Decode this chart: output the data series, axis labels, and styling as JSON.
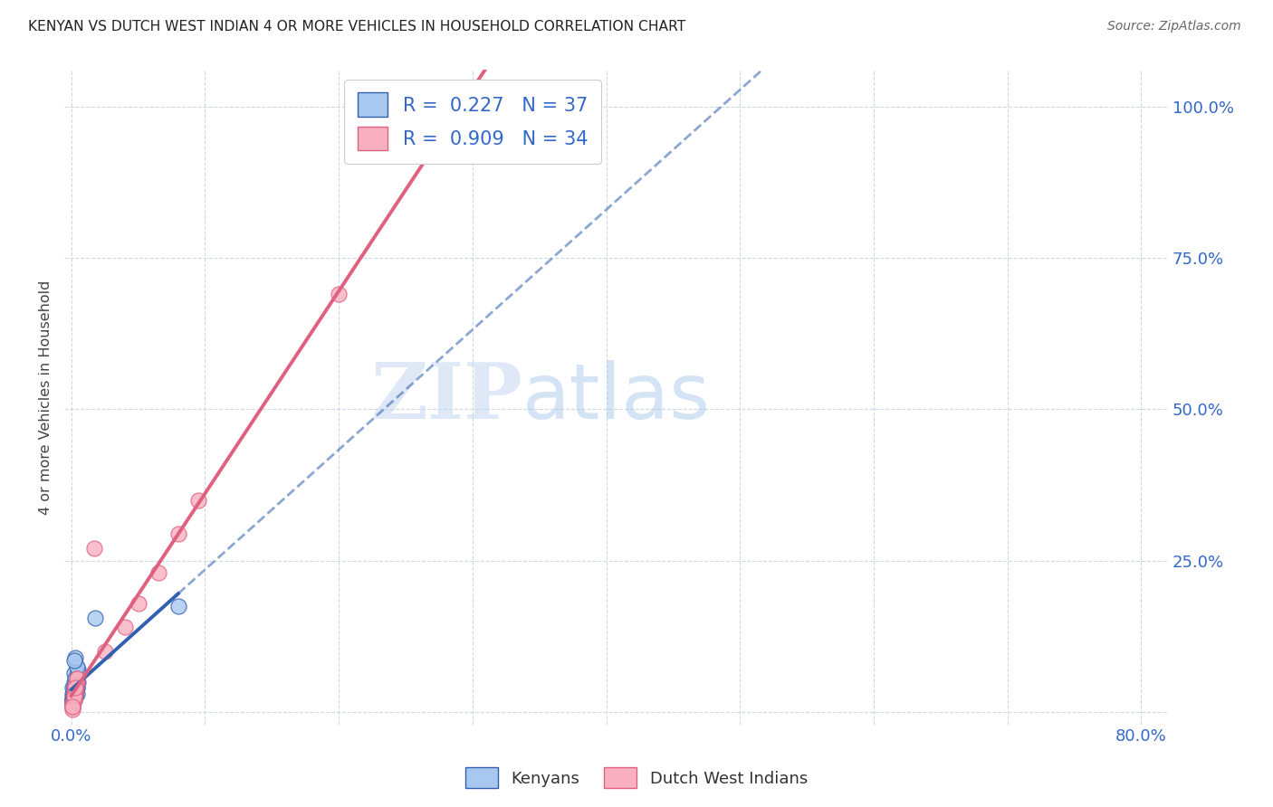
{
  "title": "KENYAN VS DUTCH WEST INDIAN 4 OR MORE VEHICLES IN HOUSEHOLD CORRELATION CHART",
  "source": "Source: ZipAtlas.com",
  "ylabel": "4 or more Vehicles in Household",
  "kenyan_R": 0.227,
  "kenyan_N": 37,
  "dutch_R": 0.909,
  "dutch_N": 34,
  "kenyan_color": "#a8c8f0",
  "dutch_color": "#f8b0c0",
  "kenyan_line_color": "#3060b0",
  "dutch_line_color": "#e06080",
  "watermark_zip": "ZIP",
  "watermark_atlas": "atlas",
  "legend_kenyan_label": "Kenyans",
  "legend_dutch_label": "Dutch West Indians",
  "background_color": "#ffffff",
  "kenyan_points_x": [
    0.001,
    0.002,
    0.001,
    0.003,
    0.002,
    0.004,
    0.003,
    0.002,
    0.001,
    0.003,
    0.004,
    0.005,
    0.002,
    0.001,
    0.003,
    0.004,
    0.002,
    0.003,
    0.001,
    0.002,
    0.005,
    0.004,
    0.003,
    0.002,
    0.001,
    0.003,
    0.004,
    0.005,
    0.002,
    0.001,
    0.004,
    0.003,
    0.002,
    0.018,
    0.001,
    0.002,
    0.08
  ],
  "kenyan_points_y": [
    0.03,
    0.025,
    0.04,
    0.03,
    0.05,
    0.03,
    0.025,
    0.04,
    0.02,
    0.035,
    0.04,
    0.05,
    0.03,
    0.025,
    0.04,
    0.05,
    0.025,
    0.03,
    0.02,
    0.04,
    0.07,
    0.06,
    0.04,
    0.065,
    0.02,
    0.055,
    0.04,
    0.065,
    0.025,
    0.015,
    0.075,
    0.09,
    0.085,
    0.155,
    0.015,
    0.03,
    0.175
  ],
  "dutch_points_x": [
    0.001,
    0.002,
    0.003,
    0.002,
    0.003,
    0.004,
    0.003,
    0.001,
    0.002,
    0.003,
    0.002,
    0.003,
    0.004,
    0.003,
    0.004,
    0.001,
    0.002,
    0.003,
    0.001,
    0.002,
    0.003,
    0.004,
    0.002,
    0.003,
    0.025,
    0.04,
    0.05,
    0.065,
    0.08,
    0.095,
    0.001,
    0.001,
    0.2,
    0.017
  ],
  "dutch_points_y": [
    0.01,
    0.02,
    0.03,
    0.025,
    0.04,
    0.05,
    0.035,
    0.015,
    0.03,
    0.04,
    0.02,
    0.035,
    0.05,
    0.04,
    0.055,
    0.01,
    0.025,
    0.035,
    0.01,
    0.03,
    0.045,
    0.055,
    0.025,
    0.04,
    0.1,
    0.14,
    0.18,
    0.23,
    0.295,
    0.35,
    0.005,
    0.01,
    0.69,
    0.27
  ],
  "xlim": [
    -0.005,
    0.82
  ],
  "ylim": [
    -0.02,
    1.06
  ],
  "x_tick_positions": [
    0.0,
    0.1,
    0.2,
    0.3,
    0.4,
    0.5,
    0.6,
    0.7,
    0.8
  ],
  "x_tick_labels": [
    "0.0%",
    "",
    "",
    "",
    "",
    "",
    "",
    "",
    "80.0%"
  ],
  "y_tick_positions": [
    0.0,
    0.25,
    0.5,
    0.75,
    1.0
  ],
  "y_tick_labels_right": [
    "",
    "25.0%",
    "50.0%",
    "75.0%",
    "100.0%"
  ]
}
